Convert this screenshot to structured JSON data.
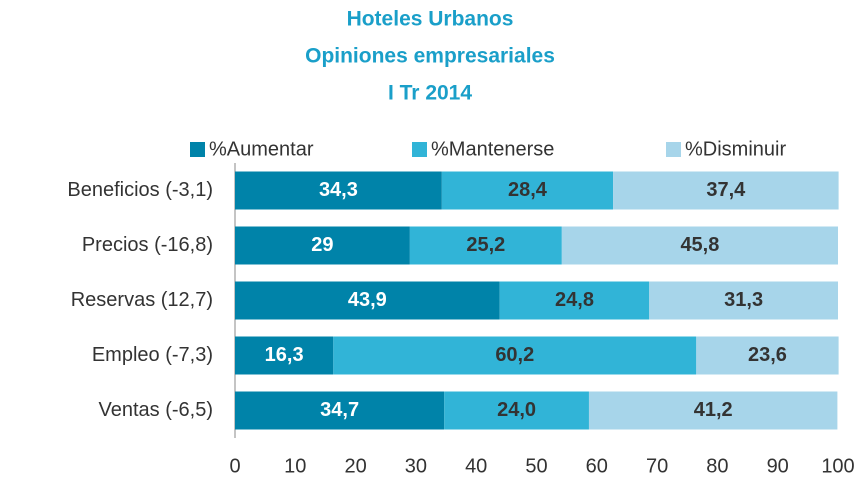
{
  "chart_data": {
    "type": "stacked_barh",
    "title": [
      "Hoteles Urbanos",
      "Opiniones empresariales",
      "I Tr 2014"
    ],
    "categories": [
      "Beneficios (-3,1)",
      "Precios (-16,8)",
      "Reservas (12,7)",
      "Empleo (-7,3)",
      "Ventas (-6,5)"
    ],
    "series": [
      {
        "name": "%Aumentar",
        "color": "#0083a9",
        "label_color": "#ffffff",
        "values": [
          34.3,
          29,
          43.9,
          16.3,
          34.7
        ],
        "value_labels": [
          "34,3",
          "29",
          "43,9",
          "16,3",
          "34,7"
        ]
      },
      {
        "name": "%Mantenerse",
        "color": "#31b4d7",
        "label_color": "#333333",
        "values": [
          28.4,
          25.2,
          24.8,
          60.2,
          24.0
        ],
        "value_labels": [
          "28,4",
          "25,2",
          "24,8",
          "60,2",
          "24,0"
        ]
      },
      {
        "name": "%Disminuir",
        "color": "#a7d5ea",
        "label_color": "#333333",
        "values": [
          37.4,
          45.8,
          31.3,
          23.6,
          41.2
        ],
        "value_labels": [
          "37,4",
          "45,8",
          "31,3",
          "23,6",
          "41,2"
        ]
      }
    ],
    "xlim": [
      0,
      100
    ],
    "xticks": [
      0,
      10,
      20,
      30,
      40,
      50,
      60,
      70,
      80,
      90,
      100
    ],
    "legend": "top",
    "grid": false
  }
}
